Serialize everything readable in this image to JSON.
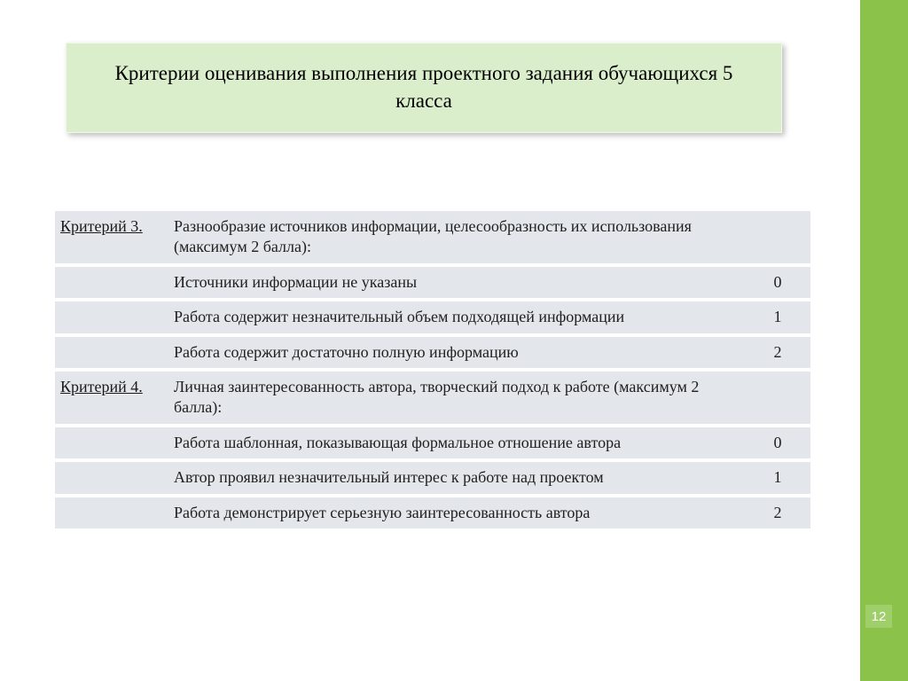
{
  "colors": {
    "accent_bar": "#8bc34a",
    "title_bg": "#dbeecb",
    "row_stripe": "#e3e6ea",
    "row_plain": "#ffffff",
    "page_num_bg": "#9fcf6b"
  },
  "title": "Критерии оценивания выполнения проектного задания обучающихся 5 класса",
  "page_number": "12",
  "rows": [
    {
      "criterion": "Критерий 3.",
      "desc": "Разнообразие источников информации, целесообразность их использования (максимум 2 балла):",
      "score": ""
    },
    {
      "criterion": "",
      "desc": "Источники информации не указаны",
      "score": "0"
    },
    {
      "criterion": "",
      "desc": "Работа содержит незначительный объем подходящей информации",
      "score": "1"
    },
    {
      "criterion": "",
      "desc": "Работа содержит достаточно полную информацию",
      "score": "2"
    },
    {
      "criterion": "Критерий 4.",
      "desc": "Личная заинтересованность автора, творческий подход к работе (максимум 2 балла):",
      "score": ""
    },
    {
      "criterion": "",
      "desc": "Работа шаблонная, показывающая формальное отношение автора",
      "score": "0"
    },
    {
      "criterion": "",
      "desc": "Автор проявил незначительный интерес к работе над проектом",
      "score": "1"
    },
    {
      "criterion": "",
      "desc": "Работа демонстрирует серьезную заинтересованность автора",
      "score": "2"
    }
  ]
}
